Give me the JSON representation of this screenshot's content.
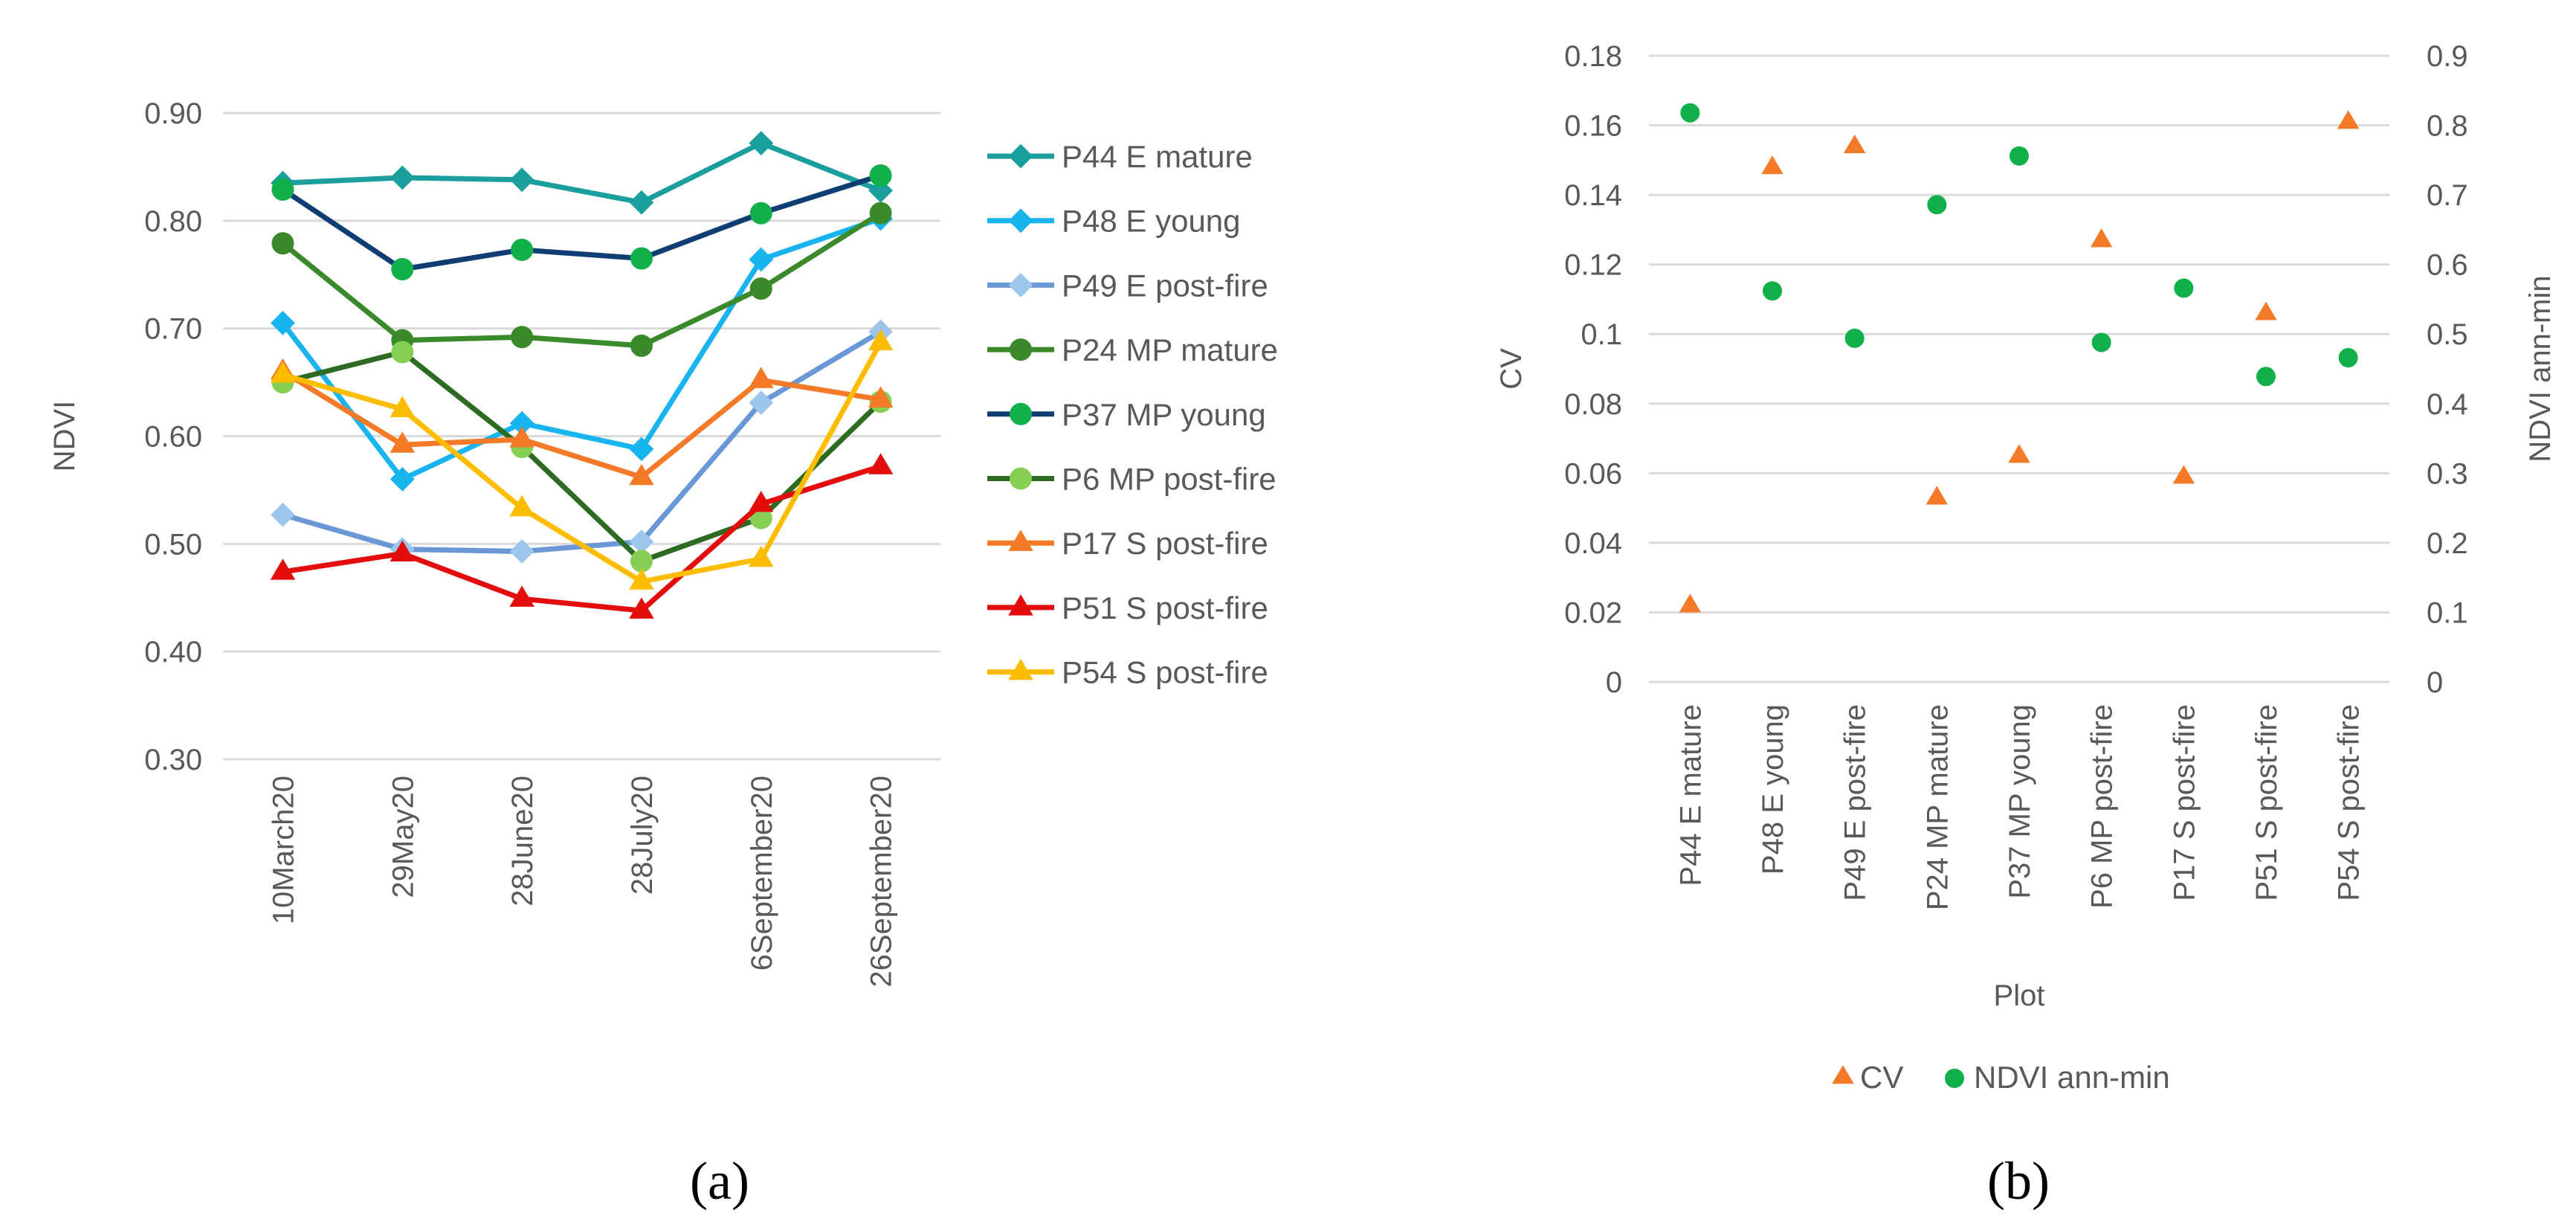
{
  "chart_data": [
    {
      "type": "line",
      "panel_label": "(a)",
      "ylabel": "NDVI",
      "xlabel": "",
      "ylim": [
        0.3,
        0.9
      ],
      "yticks": [
        "0.30",
        "0.40",
        "0.50",
        "0.60",
        "0.70",
        "0.80",
        "0.90"
      ],
      "categories": [
        "10March20",
        "29May20",
        "28June20",
        "28July20",
        "6September20",
        "26September20"
      ],
      "legend_position": "right",
      "series": [
        {
          "name": "P44 E mature",
          "color": "#1a9e9e",
          "marker": "diamond",
          "values": [
            0.835,
            0.84,
            0.838,
            0.817,
            0.872,
            0.828
          ]
        },
        {
          "name": "P48 E young",
          "color": "#18b4ef",
          "marker": "diamond",
          "values": [
            0.705,
            0.56,
            0.612,
            0.588,
            0.764,
            0.802
          ]
        },
        {
          "name": "P49 E post-fire",
          "color": "#6a98d6",
          "marker": "diamond",
          "fill": "#9cc6ec",
          "values": [
            0.527,
            0.495,
            0.493,
            0.502,
            0.631,
            0.697
          ]
        },
        {
          "name": "P24 MP mature",
          "color": "#3a8a2c",
          "marker": "circle",
          "values": [
            0.779,
            0.689,
            0.692,
            0.684,
            0.737,
            0.807
          ]
        },
        {
          "name": "P37 MP young",
          "color": "#0f3e74",
          "marker": "circle",
          "fill": "#11b04b",
          "values": [
            0.829,
            0.755,
            0.773,
            0.765,
            0.807,
            0.842
          ]
        },
        {
          "name": "P6 MP post-fire",
          "color": "#2e6b22",
          "marker": "circle",
          "fill": "#86cf54",
          "values": [
            0.65,
            0.678,
            0.59,
            0.484,
            0.524,
            0.632
          ]
        },
        {
          "name": "P17 S post-fire",
          "color": "#f47a27",
          "marker": "triangle",
          "values": [
            0.66,
            0.592,
            0.597,
            0.562,
            0.652,
            0.634
          ]
        },
        {
          "name": "P51 S post-fire",
          "color": "#e30d0d",
          "marker": "triangle",
          "values": [
            0.474,
            0.491,
            0.449,
            0.438,
            0.537,
            0.572
          ]
        },
        {
          "name": "P54 S post-fire",
          "color": "#fcbc00",
          "marker": "triangle",
          "values": [
            0.657,
            0.625,
            0.533,
            0.465,
            0.486,
            0.687
          ]
        }
      ]
    },
    {
      "type": "scatter",
      "panel_label": "(b)",
      "xlabel": "Plot",
      "ylabel": "CV",
      "y2label": "NDVI ann-min",
      "ylim": [
        0,
        0.18
      ],
      "y2lim": [
        0,
        0.9
      ],
      "yticks": [
        "0",
        "0.02",
        "0.04",
        "0.06",
        "0.08",
        "0.1",
        "0.12",
        "0.14",
        "0.16",
        "0.18"
      ],
      "y2ticks": [
        "0",
        "0.1",
        "0.2",
        "0.3",
        "0.4",
        "0.5",
        "0.6",
        "0.7",
        "0.8",
        "0.9"
      ],
      "categories": [
        "P44 E mature",
        "P48 E young",
        "P49 E post-fire",
        "P24 MP mature",
        "P37 MP young",
        "P6 MP post-fire",
        "P17 S post-fire",
        "P51 S post-fire",
        "P54 S post-fire"
      ],
      "legend_position": "bottom",
      "series": [
        {
          "name": "CV",
          "axis": "left",
          "color": "#f47a27",
          "marker": "triangle",
          "values": [
            0.022,
            0.148,
            0.154,
            0.053,
            0.065,
            0.127,
            0.059,
            0.106,
            0.161
          ]
        },
        {
          "name": "NDVI ann-min",
          "axis": "right",
          "color": "#11b04b",
          "marker": "circle",
          "values": [
            0.818,
            0.562,
            0.494,
            0.686,
            0.756,
            0.488,
            0.566,
            0.439,
            0.466
          ]
        }
      ]
    }
  ]
}
